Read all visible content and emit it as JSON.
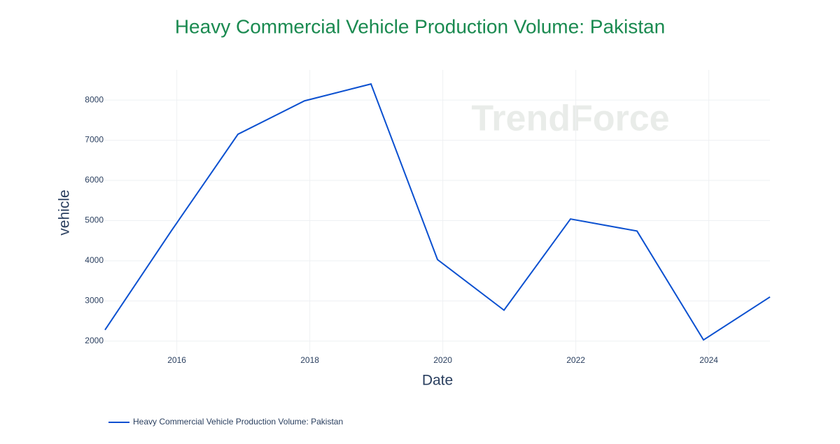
{
  "chart_data": {
    "type": "line",
    "title": "Heavy Commercial Vehicle Production Volume: Pakistan",
    "x_label": "Date",
    "y_label": "vehicle",
    "watermark": "TrendForce",
    "x": [
      2014.92,
      2015.92,
      2016.92,
      2017.92,
      2018.92,
      2019.92,
      2020.92,
      2021.92,
      2022.92,
      2023.92,
      2024.92
    ],
    "series": [
      {
        "name": "Heavy Commercial Vehicle Production Volume: Pakistan",
        "color": "#0b50d0",
        "values": [
          2280,
          4750,
          7150,
          7980,
          8400,
          4030,
          2770,
          5040,
          4740,
          2030,
          3100
        ]
      }
    ],
    "xlim": [
      2014.92,
      2024.92
    ],
    "xticks": [
      2016,
      2018,
      2020,
      2022,
      2024
    ],
    "ylim": [
      1650,
      8750
    ],
    "yticks": [
      2000,
      3000,
      4000,
      5000,
      6000,
      7000,
      8000
    ],
    "grid": true,
    "legend": "bottom-left"
  }
}
